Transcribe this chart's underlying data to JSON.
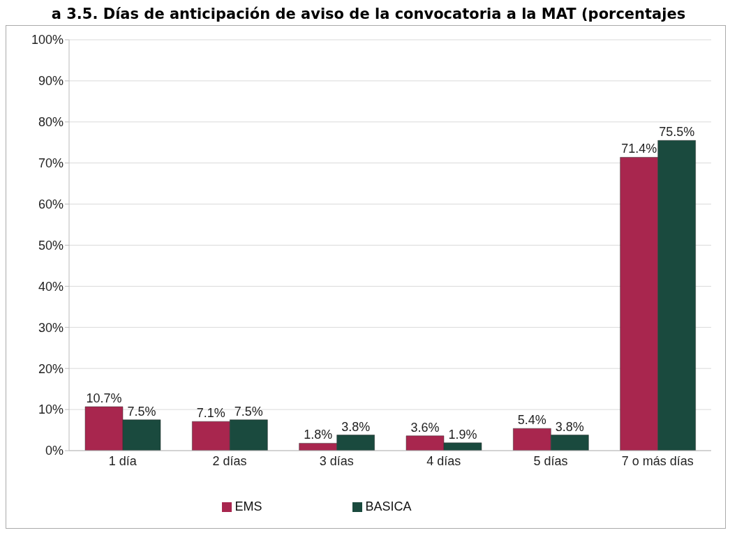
{
  "chart_data": {
    "type": "bar",
    "title": "a 3.5. Días de anticipación de aviso de la convocatoria a la MAT (porcentajes",
    "categories": [
      "1 día",
      "2 días",
      "3 días",
      "4 días",
      "5 días",
      "7 o más días"
    ],
    "series": [
      {
        "name": "EMS",
        "color": "#a8264e",
        "values": [
          10.7,
          7.1,
          1.8,
          3.6,
          5.4,
          71.4
        ],
        "value_labels": [
          "10.7%",
          "7.1%",
          "1.8%",
          "3.6%",
          "5.4%",
          "71.4%"
        ]
      },
      {
        "name": "BASICA",
        "color": "#1a4a3e",
        "values": [
          7.5,
          7.5,
          3.8,
          1.9,
          3.8,
          75.5
        ],
        "value_labels": [
          "7.5%",
          "7.5%",
          "3.8%",
          "1.9%",
          "3.8%",
          "75.5%"
        ]
      }
    ],
    "ylim": [
      0,
      100
    ],
    "yticks": [
      {
        "value": 0,
        "label": "0%"
      },
      {
        "value": 10,
        "label": "10%"
      },
      {
        "value": 20,
        "label": "20%"
      },
      {
        "value": 30,
        "label": "30%"
      },
      {
        "value": 40,
        "label": "40%"
      },
      {
        "value": 50,
        "label": "50%"
      },
      {
        "value": 60,
        "label": "60%"
      },
      {
        "value": 70,
        "label": "70%"
      },
      {
        "value": 80,
        "label": "80%"
      },
      {
        "value": 90,
        "label": "90%"
      },
      {
        "value": 100,
        "label": "100%"
      }
    ],
    "grid": "y",
    "legend": "bottom"
  }
}
